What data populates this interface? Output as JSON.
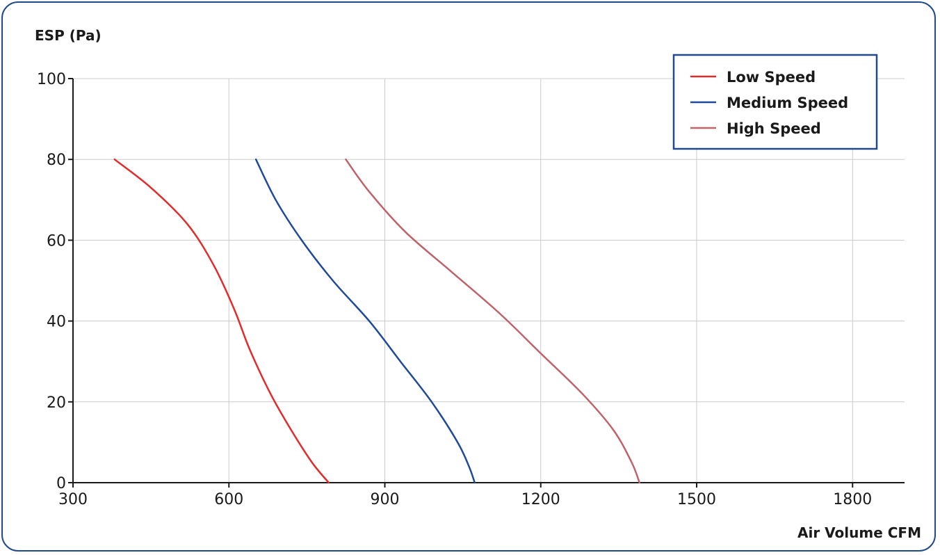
{
  "chart_data": {
    "type": "line",
    "title": "",
    "xlabel": "Air Volume CFM",
    "ylabel": "ESP (Pa)",
    "xlim": [
      300,
      1900
    ],
    "ylim": [
      0,
      100
    ],
    "xticks": [
      300,
      600,
      900,
      1200,
      1500,
      1800
    ],
    "yticks": [
      0,
      20,
      40,
      60,
      80,
      100
    ],
    "xtick_labels": [
      "300",
      "600",
      "900",
      "1200",
      "1500",
      "1800"
    ],
    "ytick_labels": [
      "0",
      "20",
      "40",
      "60",
      "80",
      "100"
    ],
    "grid": true,
    "legend_position": "top-right",
    "series": [
      {
        "name": "Low Speed",
        "color": "#e32b2b",
        "points": [
          [
            380,
            80
          ],
          [
            450,
            73
          ],
          [
            520,
            64
          ],
          [
            570,
            54
          ],
          [
            610,
            43
          ],
          [
            640,
            33
          ],
          [
            680,
            22
          ],
          [
            720,
            13
          ],
          [
            760,
            5
          ],
          [
            792,
            0
          ]
        ]
      },
      {
        "name": "Medium Speed",
        "color": "#1f4a9c",
        "points": [
          [
            652,
            80
          ],
          [
            690,
            70
          ],
          [
            740,
            60
          ],
          [
            800,
            50
          ],
          [
            870,
            40
          ],
          [
            930,
            30
          ],
          [
            990,
            20
          ],
          [
            1040,
            10
          ],
          [
            1062,
            4
          ],
          [
            1073,
            0
          ]
        ]
      },
      {
        "name": "High Speed",
        "color": "#c0626a",
        "points": [
          [
            825,
            80
          ],
          [
            870,
            72
          ],
          [
            940,
            62
          ],
          [
            1030,
            52
          ],
          [
            1120,
            42
          ],
          [
            1200,
            32
          ],
          [
            1280,
            22
          ],
          [
            1340,
            13
          ],
          [
            1375,
            5
          ],
          [
            1390,
            0
          ]
        ]
      }
    ]
  }
}
